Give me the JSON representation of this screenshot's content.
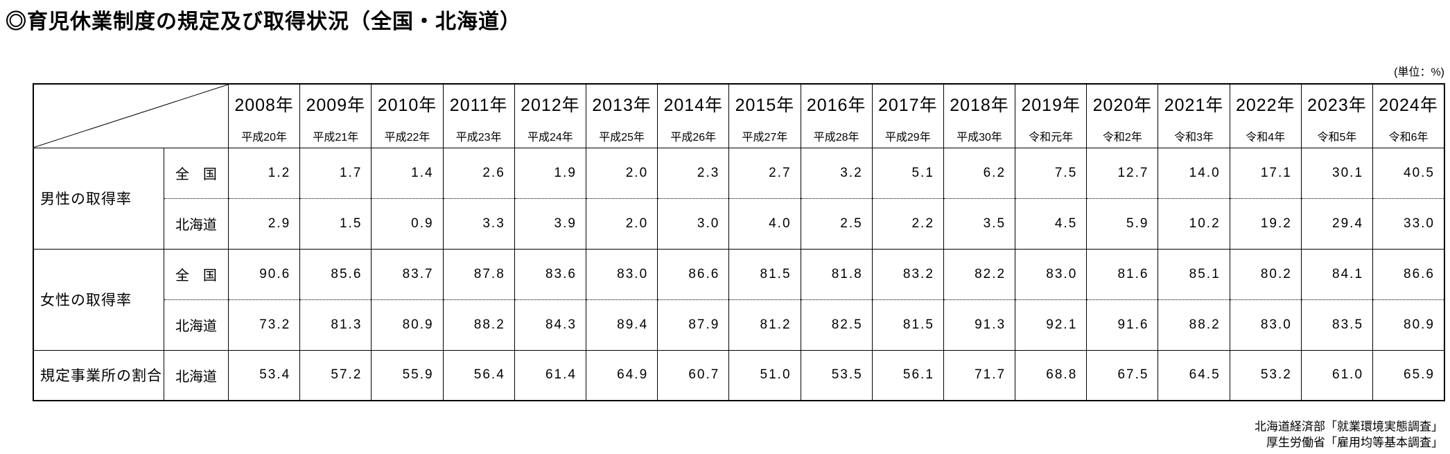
{
  "title": "◎育児休業制度の規定及び取得状況（全国・北海道）",
  "unit_label": "(単位：%)",
  "table": {
    "years": [
      {
        "western": "2008年",
        "era": "平成20年"
      },
      {
        "western": "2009年",
        "era": "平成21年"
      },
      {
        "western": "2010年",
        "era": "平成22年"
      },
      {
        "western": "2011年",
        "era": "平成23年"
      },
      {
        "western": "2012年",
        "era": "平成24年"
      },
      {
        "western": "2013年",
        "era": "平成25年"
      },
      {
        "western": "2014年",
        "era": "平成26年"
      },
      {
        "western": "2015年",
        "era": "平成27年"
      },
      {
        "western": "2016年",
        "era": "平成28年"
      },
      {
        "western": "2017年",
        "era": "平成29年"
      },
      {
        "western": "2018年",
        "era": "平成30年"
      },
      {
        "western": "2019年",
        "era": "令和元年"
      },
      {
        "western": "2020年",
        "era": "令和2年"
      },
      {
        "western": "2021年",
        "era": "令和3年"
      },
      {
        "western": "2022年",
        "era": "令和4年"
      },
      {
        "western": "2023年",
        "era": "令和5年"
      },
      {
        "western": "2024年",
        "era": "令和6年"
      }
    ],
    "rows": [
      {
        "group": "男性の取得率",
        "region": "全　国",
        "values": [
          "1.2",
          "1.7",
          "1.4",
          "2.6",
          "1.9",
          "2.0",
          "2.3",
          "2.7",
          "3.2",
          "5.1",
          "6.2",
          "7.5",
          "12.7",
          "14.0",
          "17.1",
          "30.1",
          "40.5"
        ]
      },
      {
        "group": "男性の取得率",
        "region": "北海道",
        "values": [
          "2.9",
          "1.5",
          "0.9",
          "3.3",
          "3.9",
          "2.0",
          "3.0",
          "4.0",
          "2.5",
          "2.2",
          "3.5",
          "4.5",
          "5.9",
          "10.2",
          "19.2",
          "29.4",
          "33.0"
        ]
      },
      {
        "group": "女性の取得率",
        "region": "全　国",
        "values": [
          "90.6",
          "85.6",
          "83.7",
          "87.8",
          "83.6",
          "83.0",
          "86.6",
          "81.5",
          "81.8",
          "83.2",
          "82.2",
          "83.0",
          "81.6",
          "85.1",
          "80.2",
          "84.1",
          "86.6"
        ]
      },
      {
        "group": "女性の取得率",
        "region": "北海道",
        "values": [
          "73.2",
          "81.3",
          "80.9",
          "88.2",
          "84.3",
          "89.4",
          "87.9",
          "81.2",
          "82.5",
          "81.5",
          "91.3",
          "92.1",
          "91.6",
          "88.2",
          "83.0",
          "83.5",
          "80.9"
        ]
      },
      {
        "group": "規定事業所の割合",
        "region": "北海道",
        "values": [
          "53.4",
          "57.2",
          "55.9",
          "56.4",
          "61.4",
          "64.9",
          "60.7",
          "51.0",
          "53.5",
          "56.1",
          "71.7",
          "68.8",
          "67.5",
          "64.5",
          "53.2",
          "61.0",
          "65.9"
        ]
      }
    ]
  },
  "sources": [
    "北海道経済部「就業環境実態調査」",
    "厚生労働省「雇用均等基本調査」"
  ]
}
